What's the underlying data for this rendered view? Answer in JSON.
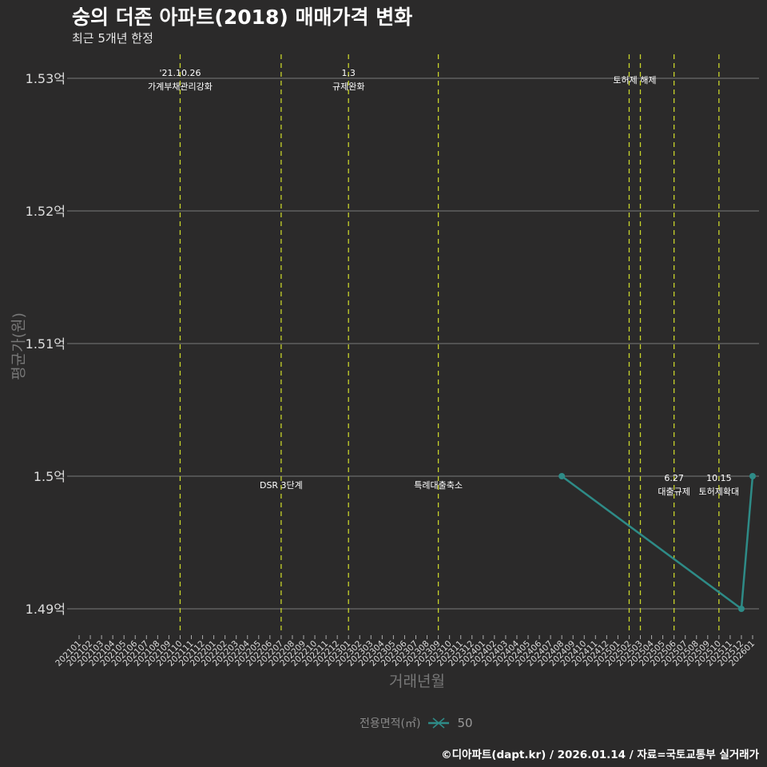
{
  "header": {
    "title": "숭의 더존 아파트(2018) 매매가격 변화",
    "subtitle": "최근 5개년 한정"
  },
  "axes": {
    "ylabel": "평균가(원)",
    "xlabel": "거래년월"
  },
  "legend": {
    "title": "전용면적(㎡)",
    "item": "50",
    "color": "#2e8b87"
  },
  "footer": {
    "credit": "©디아파트(dapt.kr) / 2026.01.14 / 자료=국토교통부 실거래가"
  },
  "colors": {
    "background": "#2b2a2a",
    "grid": "#7a7a7a",
    "event_line": "#c8d42a",
    "series": "#2e8b87"
  },
  "chart_data": {
    "type": "line",
    "title": "숭의 더존 아파트(2018) 매매가격 변화",
    "subtitle": "최근 5개년 한정",
    "xlabel": "거래년월",
    "ylabel": "평균가(원)",
    "ylim": [
      1.488,
      1.532
    ],
    "y_ticks": [
      {
        "value": 1.49,
        "label": "1.49억"
      },
      {
        "value": 1.5,
        "label": "1.5억"
      },
      {
        "value": 1.51,
        "label": "1.51억"
      },
      {
        "value": 1.52,
        "label": "1.52억"
      },
      {
        "value": 1.53,
        "label": "1.53억"
      }
    ],
    "categories": [
      "202101",
      "202102",
      "202103",
      "202104",
      "202105",
      "202106",
      "202107",
      "202108",
      "202109",
      "202110",
      "202111",
      "202112",
      "202201",
      "202202",
      "202203",
      "202204",
      "202205",
      "202206",
      "202207",
      "202208",
      "202209",
      "202210",
      "202211",
      "202212",
      "202301",
      "202302",
      "202303",
      "202304",
      "202305",
      "202306",
      "202307",
      "202308",
      "202309",
      "202310",
      "202311",
      "202312",
      "202401",
      "202402",
      "202403",
      "202404",
      "202405",
      "202406",
      "202407",
      "202408",
      "202409",
      "202410",
      "202411",
      "202412",
      "202501",
      "202502",
      "202503",
      "202504",
      "202505",
      "202506",
      "202507",
      "202508",
      "202509",
      "202510",
      "202511",
      "202512",
      "202601"
    ],
    "series": [
      {
        "name": "50",
        "color": "#2e8b87",
        "points": [
          {
            "x": "202408",
            "y": 1.5
          },
          {
            "x": "202512",
            "y": 1.49
          },
          {
            "x": "202601",
            "y": 1.5
          }
        ]
      }
    ],
    "annotations": [
      {
        "x": "202110",
        "label_top": "'21.10.26",
        "label_bottom": "가계부채관리강화",
        "y_pos": "top"
      },
      {
        "x": "202207",
        "label_top": "",
        "label_bottom": "DSR 3단계",
        "y_pos": "mid"
      },
      {
        "x": "202301",
        "label_top": "1.3",
        "label_bottom": "규제완화",
        "y_pos": "top"
      },
      {
        "x": "202309",
        "label_top": "",
        "label_bottom": "특례대출축소",
        "y_pos": "mid"
      },
      {
        "x": "202502",
        "label_top": "",
        "label_bottom": "토허제 해제",
        "y_pos": "top2",
        "label_x": "202503"
      },
      {
        "x": "202503",
        "label_top": "",
        "label_bottom": "",
        "y_pos": "none"
      },
      {
        "x": "202506",
        "label_top": "6.27",
        "label_bottom": "대출규제",
        "y_pos": "mid"
      },
      {
        "x": "202510",
        "label_top": "10.15",
        "label_bottom": "토허제확대",
        "y_pos": "mid"
      }
    ],
    "legend_position": "bottom",
    "grid": true
  }
}
